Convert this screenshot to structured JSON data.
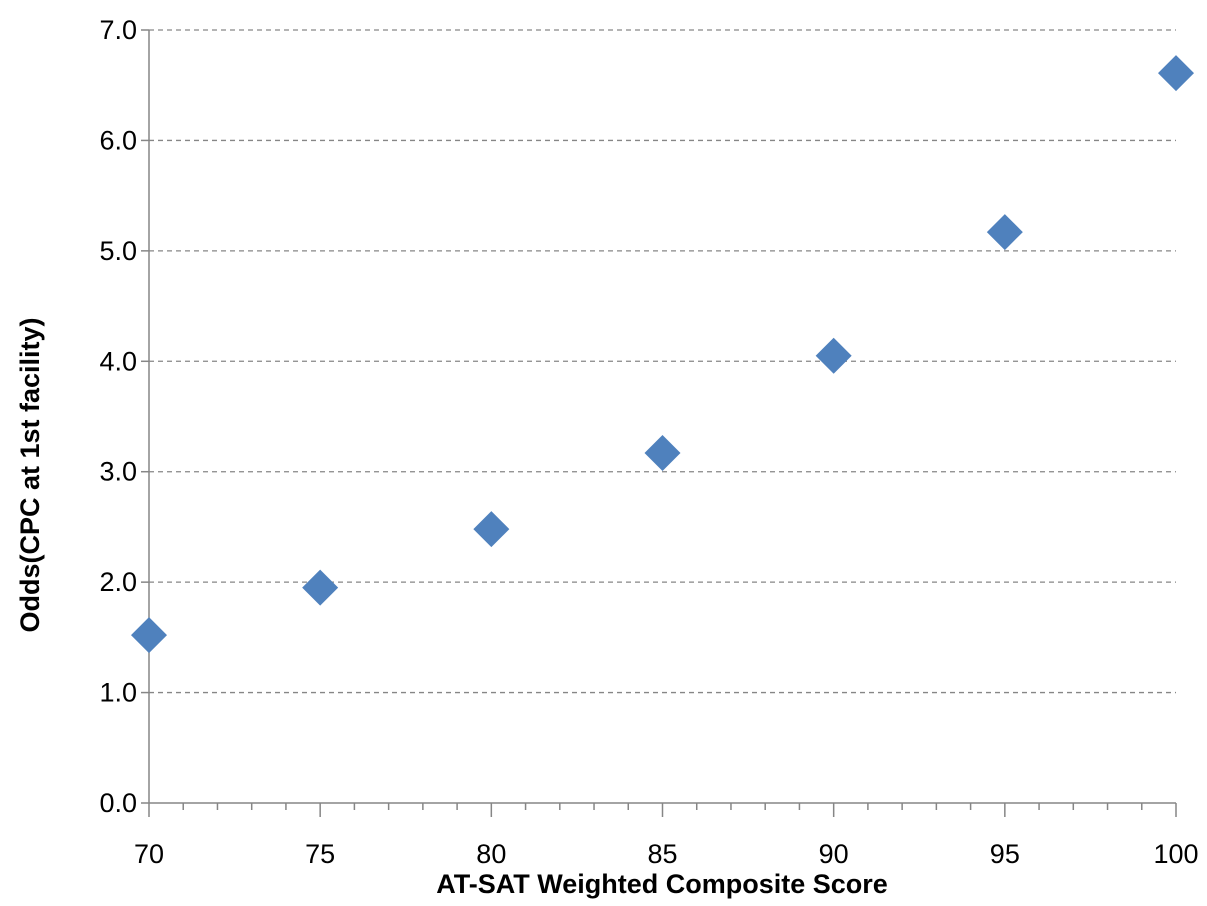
{
  "chart_data": {
    "type": "scatter",
    "title": "",
    "xlabel": "AT-SAT Weighted Composite Score",
    "ylabel": "Odds(CPC at 1st facility)",
    "xlim": [
      70,
      100
    ],
    "ylim": [
      0,
      7
    ],
    "x_ticks": [
      70,
      75,
      80,
      85,
      90,
      95,
      100
    ],
    "x_tick_labels": [
      "70",
      "75",
      "80",
      "85",
      "90",
      "95",
      "100"
    ],
    "x_minor_step": 1,
    "y_ticks": [
      0,
      1,
      2,
      3,
      4,
      5,
      6,
      7
    ],
    "y_tick_labels": [
      "0.0",
      "1.0",
      "2.0",
      "3.0",
      "4.0",
      "5.0",
      "6.0",
      "7.0"
    ],
    "grid": "horizontal-dashed",
    "legend": "none",
    "marker": "diamond",
    "series": [
      {
        "x": [
          70,
          75,
          80,
          85,
          90,
          95,
          100
        ],
        "y": [
          1.52,
          1.95,
          2.48,
          3.17,
          4.05,
          5.17,
          6.61
        ]
      }
    ],
    "colors": {
      "marker": "#4f81bd",
      "axis": "#868686",
      "grid": "#868686"
    }
  }
}
